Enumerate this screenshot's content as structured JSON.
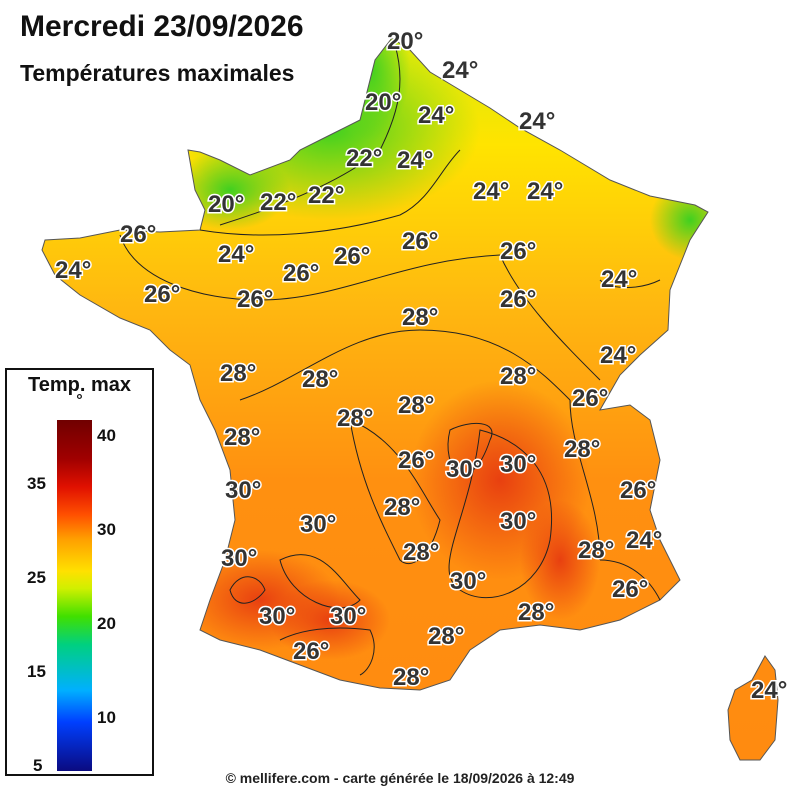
{
  "header": {
    "title": "Mercredi 23/09/2026",
    "subtitle": "Températures maximales"
  },
  "legend": {
    "title": "Temp. max",
    "unit": "°",
    "ticks": {
      "t40": "40",
      "t35": "35",
      "t30": "30",
      "t25": "25",
      "t20": "20",
      "t15": "15",
      "t10": "10",
      "t5": "5"
    }
  },
  "footer": {
    "credit": "© mellifere.com - carte générée le 18/09/2026 à 12:49"
  },
  "map_labels": [
    "20°",
    "24°",
    "20°",
    "24°",
    "24°",
    "22°",
    "24°",
    "20°",
    "22°",
    "22°",
    "24°",
    "24°",
    "26°",
    "24°",
    "24°",
    "26°",
    "26°",
    "26°",
    "26°",
    "26°",
    "26°",
    "24°",
    "26°",
    "28°",
    "24°",
    "28°",
    "28°",
    "28°",
    "28°",
    "26°",
    "28°",
    "28°",
    "28°",
    "26°",
    "30°",
    "30°",
    "28°",
    "30°",
    "26°",
    "30°",
    "30°",
    "30°",
    "28°",
    "28°",
    "24°",
    "30°",
    "26°",
    "30°",
    "30°",
    "28°",
    "28°",
    "26°",
    "28°",
    "24°"
  ],
  "colors": {
    "cool_green": "#6be000",
    "mild_yellow": "#ffef00",
    "warm_orange": "#ff9f10",
    "hot_red": "#f05010",
    "label_text": "#333333"
  }
}
